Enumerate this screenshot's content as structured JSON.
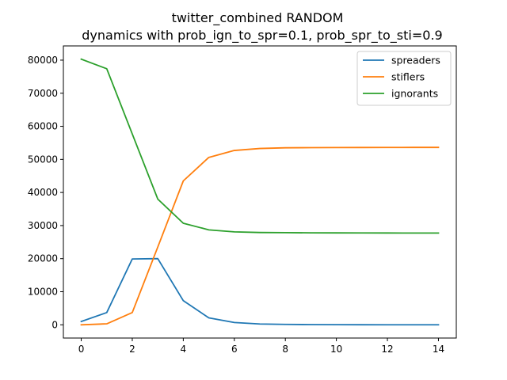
{
  "chart_data": {
    "type": "line",
    "title_line1": "twitter_combined RANDOM",
    "title_line2": "dynamics with prob_ign_to_spr=0.1, prob_spr_to_sti=0.9",
    "xlabel": "",
    "ylabel": "",
    "xlim": [
      -0.7,
      14.7
    ],
    "ylim": [
      -4000,
      84300
    ],
    "x_ticks": [
      0,
      2,
      4,
      6,
      8,
      10,
      12,
      14
    ],
    "y_ticks": [
      0,
      10000,
      20000,
      30000,
      40000,
      50000,
      60000,
      70000,
      80000
    ],
    "grid": false,
    "legend_position": "upper-right",
    "x": [
      0,
      1,
      2,
      3,
      4,
      5,
      6,
      7,
      8,
      9,
      10,
      11,
      12,
      13,
      14
    ],
    "series": [
      {
        "name": "spreaders",
        "color": "#1f77b4",
        "values": [
          1000,
          3700,
          19900,
          20000,
          7300,
          2100,
          700,
          250,
          120,
          60,
          30,
          20,
          15,
          10,
          10
        ]
      },
      {
        "name": "stiflers",
        "color": "#ff7f0e",
        "values": [
          0,
          300,
          3700,
          23500,
          43500,
          50600,
          52700,
          53300,
          53500,
          53550,
          53580,
          53600,
          53610,
          53620,
          53630
        ]
      },
      {
        "name": "ignorants",
        "color": "#2ca02c",
        "values": [
          80300,
          77400,
          57700,
          38000,
          30700,
          28700,
          28100,
          27900,
          27850,
          27800,
          27780,
          27760,
          27750,
          27740,
          27730
        ]
      }
    ]
  }
}
